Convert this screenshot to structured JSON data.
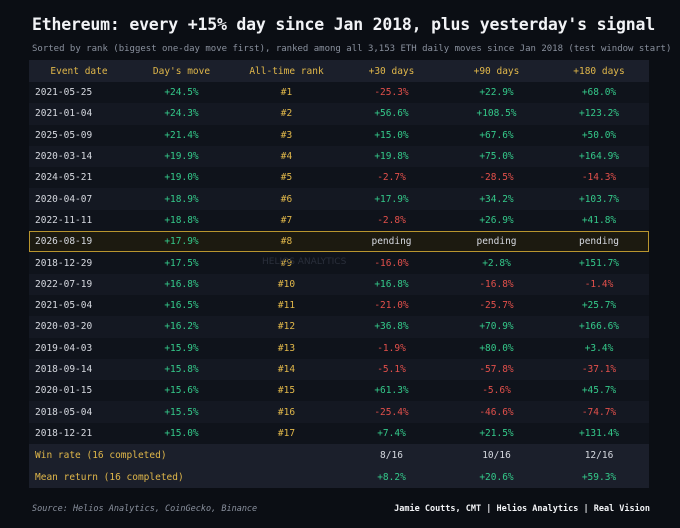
{
  "title": "Ethereum: every +15% day since Jan 2018, plus yesterday's signal",
  "subtitle": "Sorted by rank (biggest one-day move first), ranked among all 3,153 ETH daily moves since Jan 2018 (test window start)",
  "watermark": "HELIOS ANALYTICS",
  "source": "Source: Helios Analytics, CoinGecko, Binance",
  "credit": "Jamie Coutts, CMT | Helios Analytics | Real Vision",
  "colors": {
    "positive": "#34c98a",
    "negative": "#e2504b",
    "accent": "#e0b74a",
    "background": "#0b0e14"
  },
  "chart_data": {
    "type": "table",
    "columns": [
      "Event date",
      "Day's move",
      "All-time rank",
      "+30 days",
      "+90 days",
      "+180 days"
    ],
    "rows": [
      {
        "date": "2021-05-25",
        "move": "+24.5%",
        "rank": "#1",
        "d30": "-25.3%",
        "d90": "+22.9%",
        "d180": "+68.0%"
      },
      {
        "date": "2021-01-04",
        "move": "+24.3%",
        "rank": "#2",
        "d30": "+56.6%",
        "d90": "+108.5%",
        "d180": "+123.2%"
      },
      {
        "date": "2025-05-09",
        "move": "+21.4%",
        "rank": "#3",
        "d30": "+15.0%",
        "d90": "+67.6%",
        "d180": "+50.0%"
      },
      {
        "date": "2020-03-14",
        "move": "+19.9%",
        "rank": "#4",
        "d30": "+19.8%",
        "d90": "+75.0%",
        "d180": "+164.9%"
      },
      {
        "date": "2024-05-21",
        "move": "+19.0%",
        "rank": "#5",
        "d30": "-2.7%",
        "d90": "-28.5%",
        "d180": "-14.3%"
      },
      {
        "date": "2020-04-07",
        "move": "+18.9%",
        "rank": "#6",
        "d30": "+17.9%",
        "d90": "+34.2%",
        "d180": "+103.7%"
      },
      {
        "date": "2022-11-11",
        "move": "+18.8%",
        "rank": "#7",
        "d30": "-2.8%",
        "d90": "+26.9%",
        "d180": "+41.8%"
      },
      {
        "date": "2026-08-19",
        "move": "+17.9%",
        "rank": "#8",
        "d30": "pending",
        "d90": "pending",
        "d180": "pending",
        "highlight": true
      },
      {
        "date": "2018-12-29",
        "move": "+17.5%",
        "rank": "#9",
        "d30": "-16.0%",
        "d90": "+2.8%",
        "d180": "+151.7%"
      },
      {
        "date": "2022-07-19",
        "move": "+16.8%",
        "rank": "#10",
        "d30": "+16.8%",
        "d90": "-16.8%",
        "d180": "-1.4%"
      },
      {
        "date": "2021-05-04",
        "move": "+16.5%",
        "rank": "#11",
        "d30": "-21.0%",
        "d90": "-25.7%",
        "d180": "+25.7%"
      },
      {
        "date": "2020-03-20",
        "move": "+16.2%",
        "rank": "#12",
        "d30": "+36.8%",
        "d90": "+70.9%",
        "d180": "+166.6%"
      },
      {
        "date": "2019-04-03",
        "move": "+15.9%",
        "rank": "#13",
        "d30": "-1.9%",
        "d90": "+80.0%",
        "d180": "+3.4%"
      },
      {
        "date": "2018-09-14",
        "move": "+15.8%",
        "rank": "#14",
        "d30": "-5.1%",
        "d90": "-57.8%",
        "d180": "-37.1%"
      },
      {
        "date": "2020-01-15",
        "move": "+15.6%",
        "rank": "#15",
        "d30": "+61.3%",
        "d90": "-5.6%",
        "d180": "+45.7%"
      },
      {
        "date": "2018-05-04",
        "move": "+15.5%",
        "rank": "#16",
        "d30": "-25.4%",
        "d90": "-46.6%",
        "d180": "-74.7%"
      },
      {
        "date": "2018-12-21",
        "move": "+15.0%",
        "rank": "#17",
        "d30": "+7.4%",
        "d90": "+21.5%",
        "d180": "+131.4%"
      }
    ],
    "summary": [
      {
        "label": "Win rate (16 completed)",
        "d30": "8/16",
        "d90": "10/16",
        "d180": "12/16"
      },
      {
        "label": "Mean return (16 completed)",
        "d30": "+8.2%",
        "d90": "+20.6%",
        "d180": "+59.3%"
      }
    ]
  }
}
